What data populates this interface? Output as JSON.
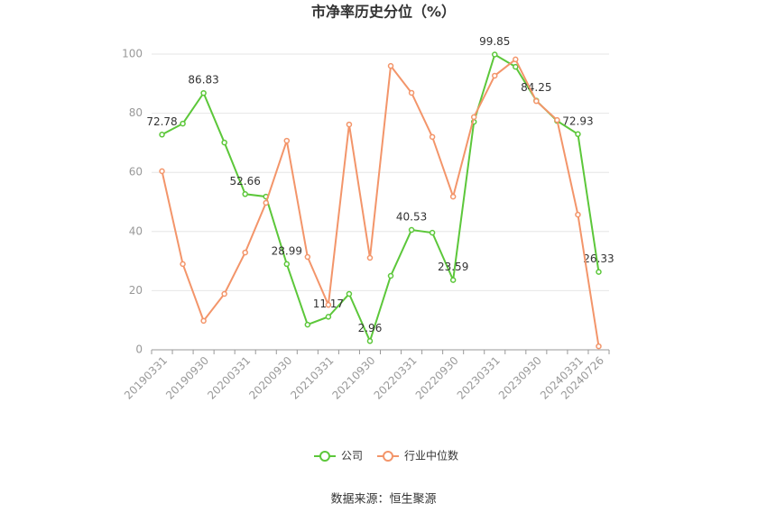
{
  "chart_data": {
    "type": "line",
    "title": "市净率历史分位（%）",
    "categories": [
      "20190331",
      null,
      "20190930",
      null,
      "20200331",
      null,
      "20200930",
      null,
      "20210331",
      null,
      "20210930",
      null,
      "20220331",
      null,
      "20220930",
      null,
      "20230331",
      null,
      "20230930",
      null,
      "20240331",
      "20240726"
    ],
    "series": [
      {
        "name": "公司",
        "color": "#5cc73a",
        "values": [
          72.78,
          76.5,
          86.83,
          70.1,
          52.66,
          51.8,
          28.99,
          8.5,
          11.17,
          18.9,
          2.96,
          25.0,
          40.53,
          39.6,
          23.59,
          77.1,
          99.85,
          95.7,
          84.25,
          77.4,
          72.93,
          26.33
        ],
        "value_labels": [
          "72.78",
          null,
          "86.83",
          null,
          "52.66",
          null,
          "28.99",
          null,
          "11.17",
          null,
          "2.96",
          null,
          "40.53",
          null,
          "23.59",
          null,
          "99.85",
          null,
          "84.25",
          null,
          "72.93",
          "26.33"
        ]
      },
      {
        "name": "行业中位数",
        "color": "#f3956a",
        "values": [
          60.4,
          29.0,
          9.8,
          18.9,
          32.9,
          49.7,
          70.7,
          31.4,
          15.2,
          76.2,
          31.1,
          96.0,
          86.9,
          72.0,
          51.8,
          78.7,
          92.7,
          98.2,
          84.1,
          77.7,
          45.7,
          1.2
        ]
      }
    ],
    "ylim": [
      0,
      100
    ],
    "yticks": [
      0,
      20,
      40,
      60,
      80,
      100
    ],
    "grid": true,
    "source": "数据来源：恒生聚源"
  }
}
